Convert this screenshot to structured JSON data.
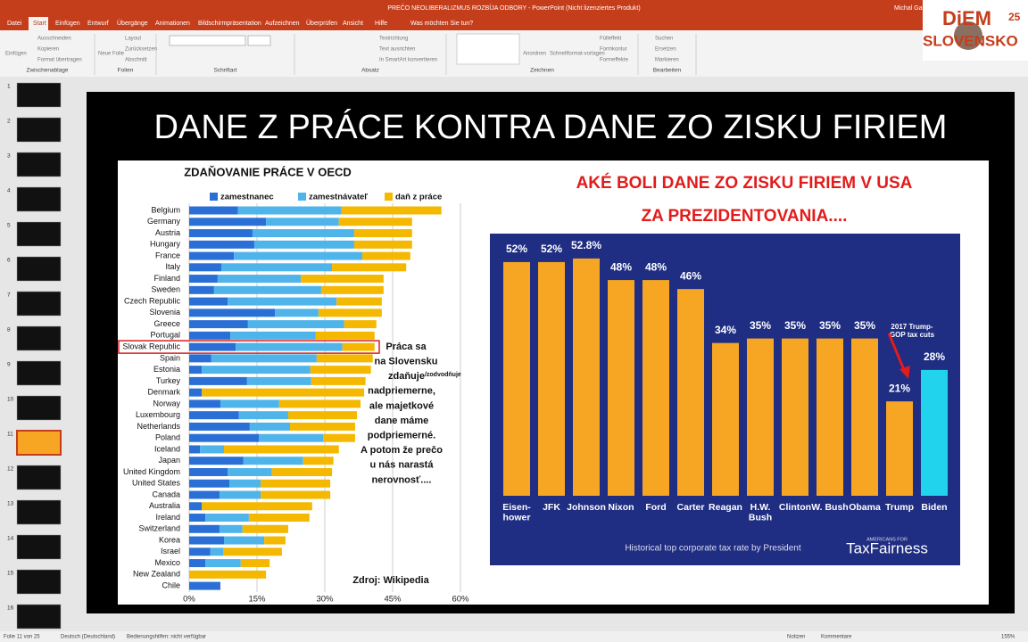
{
  "app": {
    "window_title": "PREČO NEOLIBERALIZMUS ROZBÍJA ODBORY  -  PowerPoint (Nicht lizenziertes Produkt)",
    "user": "Michal Gab",
    "tabs": [
      "Datei",
      "Start",
      "Einfügen",
      "Entwurf",
      "Übergänge",
      "Animationen",
      "Bildschirmpräsentation",
      "Aufzeichnen",
      "Überprüfen",
      "Ansicht",
      "Hilfe"
    ],
    "search": "Was möchten Sie tun?",
    "ribbon_groups": [
      "Zwischenablage",
      "Folien",
      "Schriftart",
      "Absatz",
      "Zeichnen",
      "Bearbeiten"
    ],
    "ribbon_items": [
      "Einfügen",
      "Ausschneiden",
      "Kopieren",
      "Format übertragen",
      "Neue Folie",
      "Layout",
      "Zurücksetzen",
      "Abschnitt",
      "Textrichtung",
      "Text ausrichten",
      "In SmartArt konvertieren",
      "Anordnen",
      "Schnellformat-vorlagen",
      "Fülleffekt",
      "Formkontur",
      "Formeffekte",
      "Suchen",
      "Ersetzen",
      "Markieren"
    ],
    "thumbnails": [
      1,
      2,
      3,
      4,
      5,
      6,
      7,
      8,
      9,
      10,
      11,
      12,
      13,
      14,
      15,
      16
    ],
    "status": {
      "slide": "Folie 11 von 25",
      "language": "Deutsch (Deutschland)",
      "accessibility": "Bedienungshilfen: nicht verfügbar",
      "notes": "Notizen",
      "comments": "Kommentare",
      "zoom": "155%"
    }
  },
  "logo": {
    "brand": "DiEM",
    "number": "25",
    "country": "SLOVENSKO"
  },
  "slide": {
    "title": "DANE Z PRÁCE KONTRA DANE ZO ZISKU FIRIEM"
  },
  "chart_data": [
    {
      "type": "bar",
      "orientation": "horizontal",
      "stacked": true,
      "title": "ZDAŇOVANIE PRÁCE V OECD",
      "categories": [
        "Belgium",
        "Germany",
        "Austria",
        "Hungary",
        "France",
        "Italy",
        "Finland",
        "Sweden",
        "Czech Republic",
        "Slovenia",
        "Greece",
        "Portugal",
        "Slovak Republic",
        "Spain",
        "Estonia",
        "Turkey",
        "Denmark",
        "Norway",
        "Luxembourg",
        "Netherlands",
        "Poland",
        "Iceland",
        "Japan",
        "United Kingdom",
        "United States",
        "Canada",
        "Australia",
        "Ireland",
        "Switzerland",
        "Korea",
        "Israel",
        "Mexico",
        "New Zealand",
        "Chile"
      ],
      "series": [
        {
          "name": "zamestnanec",
          "color": "#2a6fd6",
          "values": [
            10.8,
            17,
            14,
            14.4,
            9.9,
            7.1,
            6.3,
            5.5,
            8.5,
            19,
            13,
            9.1,
            10.3,
            4.9,
            2.8,
            12.8,
            2.8,
            6.9,
            11,
            13.4,
            15.4,
            2.4,
            12,
            8.5,
            8.9,
            6.7,
            2.8,
            3.6,
            6.7,
            7.7,
            4.7,
            3.6,
            0,
            6.9
          ]
        },
        {
          "name": "zamestnávateľ",
          "color": "#4fb4ea",
          "values": [
            22.9,
            16.1,
            22.5,
            22.1,
            28.4,
            24.5,
            18.4,
            23.7,
            24.1,
            9.6,
            21.3,
            18.9,
            23.6,
            23.3,
            24,
            14.2,
            0,
            13,
            10.9,
            8.9,
            14.2,
            5.3,
            13.2,
            9.8,
            6.9,
            9.1,
            0,
            9.6,
            5.1,
            8.9,
            2.8,
            7.8,
            0,
            0
          ]
        },
        {
          "name": "daň z práce",
          "color": "#f5b800",
          "values": [
            22.1,
            16.2,
            12.8,
            12.8,
            10.6,
            16.4,
            18.3,
            13.8,
            10,
            14,
            7.1,
            13,
            7.1,
            12.4,
            13.4,
            12,
            35.9,
            18,
            15.2,
            14.4,
            7.1,
            25.4,
            6.7,
            13.3,
            15.4,
            15.4,
            24.4,
            13.4,
            10.1,
            4.7,
            13,
            6.4,
            17,
            0
          ]
        }
      ],
      "xlim": [
        0,
        60
      ],
      "xticks": [
        {
          "value": 0,
          "label": "0%"
        },
        {
          "value": 15,
          "label": "15%"
        },
        {
          "value": 30,
          "label": "30%"
        },
        {
          "value": 45,
          "label": "45%"
        },
        {
          "value": 60,
          "label": "60%"
        }
      ],
      "grid": true,
      "annotation": [
        "Práca sa",
        "na Slovensku",
        "zdaňuje",
        "nadpriemerne,",
        "ale majetkové",
        "dane máme",
        "podpriemerné.",
        "A potom že prečo",
        "u nás narastá",
        "nerovnosť...."
      ],
      "annotation_superscript": "/zodvodňuje",
      "source": "Zdroj: Wikipedia"
    },
    {
      "type": "bar",
      "title": [
        "AKÉ BOLI DANE ZO ZISKU FIRIEM V USA",
        "ZA PREZIDENTOVANIA...."
      ],
      "categories": [
        "Eisen-\nhower",
        "JFK",
        "Johnson",
        "Nixon",
        "Ford",
        "Carter",
        "Reagan",
        "H.W.\nBush",
        "Clinton",
        "W. Bush",
        "Obama",
        "Trump",
        "Biden"
      ],
      "values": [
        52,
        52,
        52.8,
        48,
        48,
        46,
        34,
        35,
        35,
        35,
        35,
        21,
        28
      ],
      "value_labels": [
        "52%",
        "52%",
        "52.8%",
        "48%",
        "48%",
        "46%",
        "34%",
        "35%",
        "35%",
        "35%",
        "35%",
        "21%",
        "28%"
      ],
      "colors": [
        "#f6a623",
        "#f6a623",
        "#f6a623",
        "#f6a623",
        "#f6a623",
        "#f6a623",
        "#f6a623",
        "#f6a623",
        "#f6a623",
        "#f6a623",
        "#f6a623",
        "#f6a623",
        "#22d3ee"
      ],
      "annotation": "2017 Trump-\nGOP tax cuts",
      "caption": "Historical top corporate tax rate by President",
      "source_small": "AMERICANS FOR",
      "source": "TaxFairness"
    }
  ]
}
